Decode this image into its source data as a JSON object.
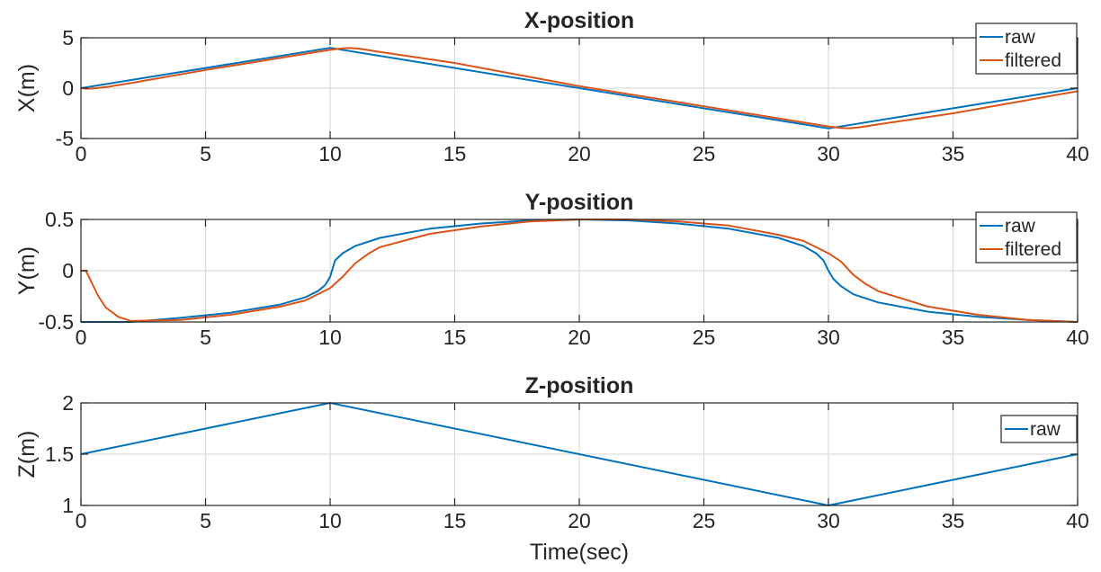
{
  "chart_data": [
    {
      "type": "line",
      "title": "X-position",
      "xlabel": "",
      "ylabel": "X(m)",
      "xlim": [
        0,
        40
      ],
      "ylim": [
        -5,
        5
      ],
      "xticks": [
        0,
        5,
        10,
        15,
        20,
        25,
        30,
        35,
        40
      ],
      "yticks": [
        -5,
        0,
        5
      ],
      "xtick_labels": [
        "0",
        "5",
        "10",
        "15",
        "20",
        "25",
        "30",
        "35",
        "40"
      ],
      "ytick_labels": [
        "-5",
        "0",
        "5"
      ],
      "grid": true,
      "legend_position": "top-right",
      "series": [
        {
          "name": "raw",
          "color": "#0072BD",
          "x": [
            0,
            10,
            30,
            40
          ],
          "y": [
            0,
            4,
            -4,
            0
          ]
        },
        {
          "name": "filtered",
          "color": "#D95319",
          "x": [
            0,
            0.3,
            0.6,
            1,
            2,
            5,
            10,
            10.5,
            10.8,
            11.2,
            12,
            15,
            20,
            25,
            30,
            30.5,
            30.8,
            31.2,
            32,
            35,
            40
          ],
          "y": [
            0,
            -0.05,
            0,
            0.1,
            0.5,
            1.8,
            3.8,
            3.95,
            3.98,
            3.9,
            3.6,
            2.5,
            0.2,
            -1.8,
            -3.8,
            -3.95,
            -3.98,
            -3.9,
            -3.6,
            -2.5,
            -0.3
          ]
        }
      ]
    },
    {
      "type": "line",
      "title": "Y-position",
      "xlabel": "",
      "ylabel": "Y(m)",
      "xlim": [
        0,
        40
      ],
      "ylim": [
        -0.5,
        0.5
      ],
      "xticks": [
        0,
        5,
        10,
        15,
        20,
        25,
        30,
        35,
        40
      ],
      "yticks": [
        -0.5,
        0,
        0.5
      ],
      "xtick_labels": [
        "0",
        "5",
        "10",
        "15",
        "20",
        "25",
        "30",
        "35",
        "40"
      ],
      "ytick_labels": [
        "-0.5",
        "0",
        "0.5"
      ],
      "grid": true,
      "legend_position": "top-right",
      "series": [
        {
          "name": "raw",
          "color": "#0072BD",
          "x": [
            0,
            2,
            4,
            6,
            8,
            9,
            9.5,
            9.8,
            10,
            10.2,
            10.5,
            11,
            12,
            14,
            16,
            18,
            20,
            22,
            24,
            26,
            28,
            29,
            29.5,
            29.8,
            30,
            30.2,
            30.5,
            31,
            32,
            34,
            36,
            38,
            40
          ],
          "y": [
            -0.5,
            -0.5,
            -0.46,
            -0.41,
            -0.33,
            -0.26,
            -0.2,
            -0.14,
            -0.06,
            0.1,
            0.17,
            0.24,
            0.32,
            0.41,
            0.46,
            0.49,
            0.5,
            0.49,
            0.46,
            0.41,
            0.32,
            0.24,
            0.17,
            0.1,
            0.0,
            -0.08,
            -0.15,
            -0.23,
            -0.31,
            -0.4,
            -0.45,
            -0.48,
            -0.5
          ]
        },
        {
          "name": "filtered",
          "color": "#D95319",
          "x": [
            0,
            0.2,
            0.4,
            0.7,
            1,
            1.5,
            2,
            4,
            6,
            8,
            9,
            10,
            10.5,
            11,
            11.5,
            12,
            14,
            16,
            18,
            20,
            22,
            24,
            26,
            28,
            29,
            30,
            30.5,
            31,
            31.5,
            32,
            34,
            36,
            38,
            40
          ],
          "y": [
            0,
            0,
            -0.1,
            -0.25,
            -0.36,
            -0.45,
            -0.49,
            -0.48,
            -0.43,
            -0.35,
            -0.29,
            -0.17,
            -0.06,
            0.07,
            0.16,
            0.23,
            0.36,
            0.43,
            0.48,
            0.5,
            0.5,
            0.48,
            0.44,
            0.35,
            0.29,
            0.17,
            0.09,
            -0.04,
            -0.13,
            -0.2,
            -0.35,
            -0.43,
            -0.48,
            -0.5
          ]
        }
      ]
    },
    {
      "type": "line",
      "title": "Z-position",
      "xlabel": "Time(sec)",
      "ylabel": "Z(m)",
      "xlim": [
        0,
        40
      ],
      "ylim": [
        1,
        2
      ],
      "xticks": [
        0,
        5,
        10,
        15,
        20,
        25,
        30,
        35,
        40
      ],
      "yticks": [
        1,
        1.5,
        2
      ],
      "xtick_labels": [
        "0",
        "5",
        "10",
        "15",
        "20",
        "25",
        "30",
        "35",
        "40"
      ],
      "ytick_labels": [
        "1",
        "1.5",
        "2"
      ],
      "grid": true,
      "legend_position": "top-right",
      "series": [
        {
          "name": "raw",
          "color": "#0072BD",
          "x": [
            0,
            10,
            30,
            40
          ],
          "y": [
            1.5,
            2,
            1,
            1.5
          ]
        }
      ]
    }
  ]
}
